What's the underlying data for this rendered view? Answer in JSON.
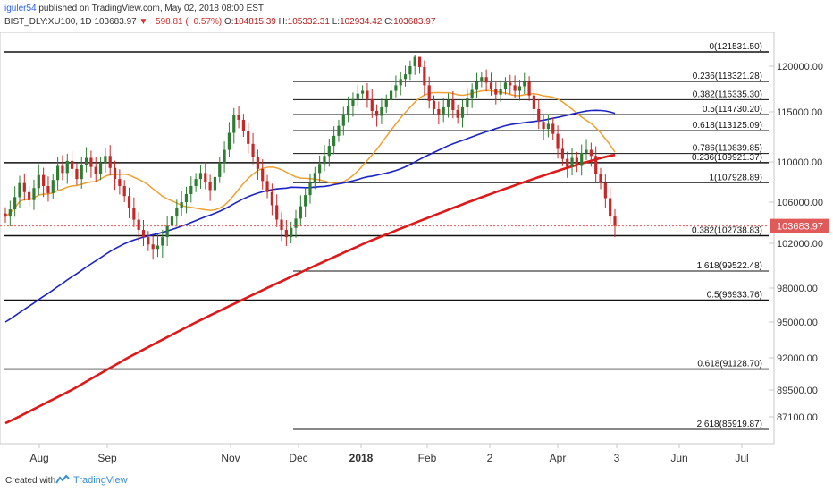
{
  "header": {
    "user": "iguler54",
    "published": "published on TradingView.com, May 02, 2018 08:00 EST",
    "symbol": "BIST_DLY:XU100, 1D",
    "last": "103683.97",
    "change": "−598.81 (−0.57%)",
    "open_label": "O:",
    "open": "104815.39",
    "high_label": "H:",
    "high": "105332.31",
    "low_label": "L:",
    "low": "102934.42",
    "close_label": "C:",
    "close": "103683.97"
  },
  "footer": {
    "created_with": "Created with",
    "brand": "TradingView"
  },
  "colors": {
    "up": "#2e7d32",
    "down": "#c62828",
    "ma_fast": "#f0a030",
    "ma_mid": "#1a23c8",
    "ma_slow": "#e01818",
    "price_tag": "#e05a5a"
  },
  "chart_data": {
    "type": "candlestick",
    "y_axis_ticks": [
      "120000.00",
      "115000.00",
      "110000.00",
      "106000.00",
      "102000.00",
      "98000.00",
      "95000.00",
      "92000.00",
      "89500.00",
      "87100.00"
    ],
    "x_axis_ticks": [
      "Aug",
      "Sep",
      "Nov",
      "Dec",
      "2018",
      "Feb",
      "2",
      "Apr",
      "3",
      "Jun",
      "Jul"
    ],
    "last_price_label": "103683.97",
    "fib_levels": [
      {
        "label": "0(121531.50)",
        "value": 121531.5
      },
      {
        "label": "0.236(118321.28)",
        "value": 118321.28
      },
      {
        "label": "0.382(116335.30)",
        "value": 116335.3
      },
      {
        "label": "0.5(114730.20)",
        "value": 114730.2
      },
      {
        "label": "0.618(113125.09)",
        "value": 113125.09
      },
      {
        "label": "0.786(110839.85)",
        "value": 110839.85
      },
      {
        "label": "0.236(109921.37)",
        "value": 109921.37
      },
      {
        "label": "1(107928.89)",
        "value": 107928.89
      },
      {
        "label": "0.382(102738.83)",
        "value": 102738.83
      },
      {
        "label": "1.618(99522.48)",
        "value": 99522.48
      },
      {
        "label": "0.5(96933.76)",
        "value": 96933.76
      },
      {
        "label": "0.618(91128.70)",
        "value": 91128.7
      },
      {
        "label": "2.618(85919.87)",
        "value": 85919.87
      }
    ],
    "candle_closes": [
      104600,
      105300,
      106500,
      107900,
      107000,
      106200,
      107400,
      108700,
      107600,
      106900,
      108200,
      109600,
      108900,
      110100,
      109300,
      108300,
      109700,
      110400,
      109500,
      108800,
      109900,
      110600,
      109400,
      108300,
      107600,
      106600,
      105400,
      104300,
      103300,
      102600,
      101900,
      101500,
      101800,
      102600,
      103700,
      104600,
      105400,
      106000,
      106800,
      107600,
      108300,
      108900,
      108000,
      107200,
      108500,
      109900,
      111200,
      112900,
      114700,
      114200,
      113100,
      111800,
      110500,
      109300,
      108100,
      107000,
      105700,
      104300,
      103300,
      102600,
      103500,
      104400,
      105600,
      106700,
      107900,
      108900,
      109800,
      110600,
      111600,
      112600,
      113600,
      114700,
      115600,
      116400,
      117000,
      117300,
      116400,
      115100,
      114600,
      115500,
      116300,
      117300,
      117900,
      118600,
      119100,
      120000,
      121000,
      119900,
      117900,
      116200,
      115300,
      114700,
      115500,
      116300,
      115200,
      114400,
      115500,
      116500,
      117400,
      118300,
      118800,
      118200,
      117500,
      116900,
      117500,
      118200,
      117900,
      117300,
      117800,
      118300,
      116800,
      115300,
      114000,
      113300,
      113800,
      112800,
      111300,
      110300,
      109500,
      110400,
      109600,
      110900,
      111200,
      110600,
      108800,
      107900,
      106400,
      104600,
      103684
    ]
  }
}
